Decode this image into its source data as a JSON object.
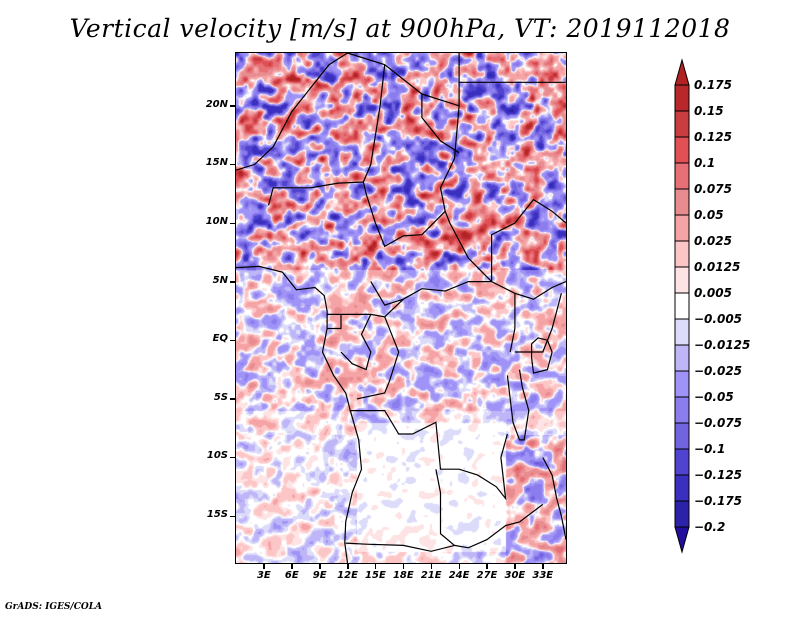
{
  "title": "Vertical velocity [m/s] at 900hPa, VT: 2019112018",
  "credit": "GrADS: IGES/COLA",
  "map": {
    "region": "Central Africa",
    "lon_range": [
      0,
      35.5
    ],
    "lat_range": [
      -19,
      24.5
    ],
    "variable": "Vertical velocity",
    "units": "m/s",
    "level": "900hPa",
    "valid_time": "2019112018"
  },
  "axes": {
    "y_ticks": [
      {
        "label": "20N",
        "value": 20
      },
      {
        "label": "15N",
        "value": 15
      },
      {
        "label": "10N",
        "value": 10
      },
      {
        "label": "5N",
        "value": 5
      },
      {
        "label": "EQ",
        "value": 0
      },
      {
        "label": "5S",
        "value": -5
      },
      {
        "label": "10S",
        "value": -10
      },
      {
        "label": "15S",
        "value": -15
      }
    ],
    "x_ticks": [
      {
        "label": "3E",
        "value": 3
      },
      {
        "label": "6E",
        "value": 6
      },
      {
        "label": "9E",
        "value": 9
      },
      {
        "label": "12E",
        "value": 12
      },
      {
        "label": "15E",
        "value": 15
      },
      {
        "label": "18E",
        "value": 18
      },
      {
        "label": "21E",
        "value": 21
      },
      {
        "label": "24E",
        "value": 24
      },
      {
        "label": "27E",
        "value": 27
      },
      {
        "label": "30E",
        "value": 30
      },
      {
        "label": "33E",
        "value": 33
      }
    ]
  },
  "colorbar": {
    "levels": [
      "0.175",
      "0.15",
      "0.125",
      "0.1",
      "0.075",
      "0.05",
      "0.025",
      "0.0125",
      "0.005",
      "-0.005",
      "-0.0125",
      "-0.025",
      "-0.05",
      "-0.075",
      "-0.1",
      "-0.125",
      "-0.175",
      "-0.2"
    ],
    "colors": [
      "#b22222",
      "#b8282a",
      "#c93c40",
      "#e05055",
      "#e77076",
      "#e88c90",
      "#f5a3a5",
      "#fcc5c6",
      "#fee3e4",
      "#ffffff",
      "#dcdcfa",
      "#bfb6f8",
      "#a093f7",
      "#8b7ded",
      "#7263e0",
      "#4f43d0",
      "#3a2fbf",
      "#2c22a8",
      "#210e9e"
    ]
  },
  "chart_data": {
    "type": "heatmap",
    "title": "Vertical velocity [m/s] at 900hPa, VT: 2019112018",
    "xlabel": "",
    "ylabel": "",
    "x_ticks": [
      "3E",
      "6E",
      "9E",
      "12E",
      "15E",
      "18E",
      "21E",
      "24E",
      "27E",
      "30E",
      "33E"
    ],
    "y_ticks": [
      "20N",
      "15N",
      "10N",
      "5N",
      "EQ",
      "5S",
      "10S",
      "15S"
    ],
    "xlim": [
      0,
      35.5
    ],
    "ylim": [
      -19,
      24.5
    ],
    "legend": "right",
    "colorbar_levels": [
      0.175,
      0.15,
      0.125,
      0.1,
      0.075,
      0.05,
      0.025,
      0.0125,
      0.005,
      -0.005,
      -0.0125,
      -0.025,
      -0.05,
      -0.075,
      -0.1,
      -0.125,
      -0.175,
      -0.2
    ],
    "description": "Shaded field of vertical velocity; strong alternating positive (red) and negative (blue) streaks north of ~5N, weaker mixed values over Gulf of Guinea and Congo basin, near-zero (white) over Angola/Zambia plateau, localized strong values near Lake Malawi/Mozambique."
  }
}
